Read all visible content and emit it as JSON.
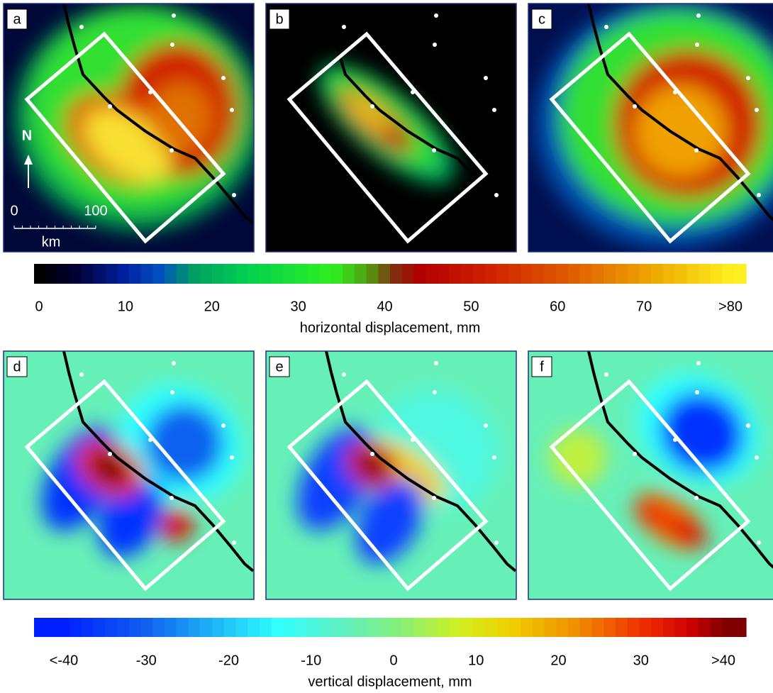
{
  "panels": [
    {
      "label": "a"
    },
    {
      "label": "b"
    },
    {
      "label": "c"
    },
    {
      "label": "d"
    },
    {
      "label": "e"
    },
    {
      "label": "f"
    }
  ],
  "north": "N",
  "scale_bar": {
    "start": 0,
    "end": 100,
    "unit": "km"
  },
  "colorbars": [
    {
      "title": "horizontal displacement, mm",
      "range": [
        0,
        80
      ],
      "ticks": [
        0,
        10,
        20,
        30,
        40,
        50,
        60,
        70,
        {
          "value": 80,
          "label": ">80"
        }
      ]
    },
    {
      "title": "vertical displacement, mm",
      "range": [
        -40,
        40
      ],
      "ticks": [
        {
          "value": -40,
          "label": "<-40"
        },
        -30,
        -20,
        -10,
        0,
        10,
        20,
        30,
        {
          "value": 40,
          "label": ">40"
        }
      ]
    }
  ]
}
